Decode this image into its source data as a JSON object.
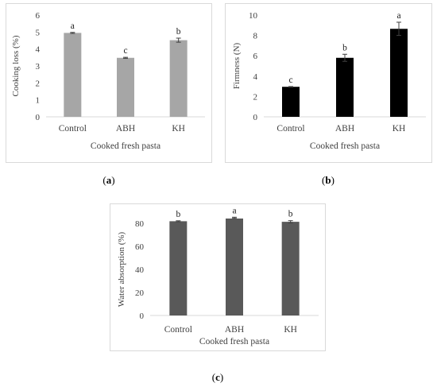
{
  "chart_data": [
    {
      "panel": "a",
      "type": "bar",
      "categories": [
        "Control",
        "ABH",
        "KH"
      ],
      "values": [
        4.95,
        3.48,
        4.52
      ],
      "errors": [
        0.03,
        0.03,
        0.12
      ],
      "letters": [
        "a",
        "c",
        "b"
      ],
      "xlabel": "Cooked fresh pasta",
      "ylabel": "Cooking loss (%)",
      "ylim": [
        0,
        6
      ],
      "yticks": [
        "0",
        "1",
        "2",
        "3",
        "4",
        "5",
        "6"
      ],
      "color": "#a6a6a6",
      "grid": false
    },
    {
      "panel": "b",
      "type": "bar",
      "categories": [
        "Control",
        "ABH",
        "KH"
      ],
      "values": [
        2.95,
        5.8,
        8.65
      ],
      "errors": [
        0.03,
        0.35,
        0.65
      ],
      "letters": [
        "c",
        "b",
        "a"
      ],
      "xlabel": "Cooked fresh pasta",
      "ylabel": "Firmness (N)",
      "ylim": [
        0,
        10
      ],
      "yticks": [
        "0",
        "2",
        "4",
        "6",
        "8",
        "10"
      ],
      "color": "#000000",
      "grid": false
    },
    {
      "panel": "c",
      "type": "bar",
      "categories": [
        "Control",
        "ABH",
        "KH"
      ],
      "values": [
        81.8,
        84.8,
        81.3
      ],
      "errors": [
        0.4,
        0.5,
        1.0
      ],
      "letters": [
        "b",
        "a",
        "b"
      ],
      "xlabel": "Cooked fresh pasta",
      "ylabel": "Water absorption (%)",
      "ylim": [
        0,
        80
      ],
      "yticks": [
        "0",
        "20",
        "40",
        "60",
        "80"
      ],
      "color": "#595959",
      "grid": false
    }
  ],
  "captions": {
    "a": "a",
    "b": "b",
    "c": "c"
  }
}
